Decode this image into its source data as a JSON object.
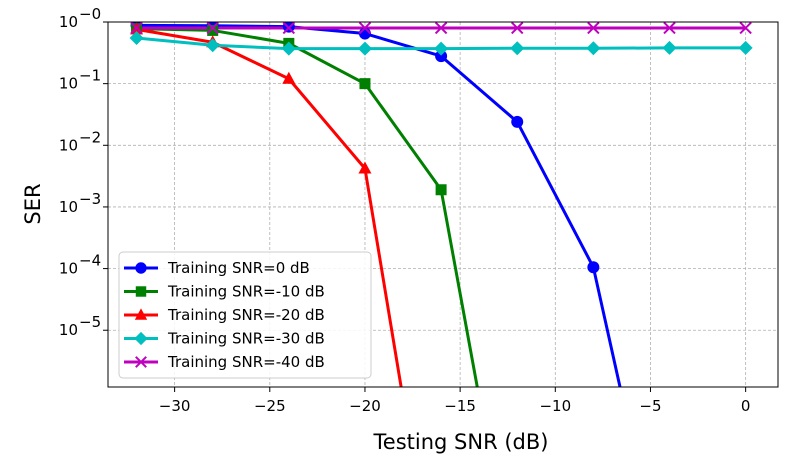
{
  "chart_data": {
    "type": "line",
    "xlabel": "Testing SNR (dB)",
    "ylabel": "SER",
    "y_scale": "log",
    "xlim": [
      -33.5,
      1.7
    ],
    "ylim": [
      1.2e-06,
      1.0
    ],
    "x_ticks": [
      -30,
      -25,
      -20,
      -15,
      -10,
      -5,
      0
    ],
    "x_tick_labels": [
      "−30",
      "−25",
      "−20",
      "−15",
      "−10",
      "−5",
      "0"
    ],
    "y_ticks": [
      1.0,
      0.1,
      0.01,
      0.001,
      0.0001,
      1e-05
    ],
    "y_tick_labels": [
      {
        "base": "10",
        "exp": "−0"
      },
      {
        "base": "10",
        "exp": "−1"
      },
      {
        "base": "10",
        "exp": "−2"
      },
      {
        "base": "10",
        "exp": "−3"
      },
      {
        "base": "10",
        "exp": "−4"
      },
      {
        "base": "10",
        "exp": "−5"
      }
    ],
    "grid": true,
    "legend_position": "lower-left",
    "series": [
      {
        "name": "Training SNR=0 dB",
        "color": "#0000ff",
        "marker": "circle",
        "x": [
          -32,
          -28,
          -24,
          -20,
          -16,
          -12,
          -8,
          -6.6
        ],
        "y": [
          0.88,
          0.87,
          0.84,
          0.65,
          0.28,
          0.024,
          0.000105,
          1.2e-06
        ]
      },
      {
        "name": "Training SNR=-10 dB",
        "color": "#008000",
        "marker": "square",
        "x": [
          -32,
          -28,
          -24,
          -20,
          -16,
          -14.1
        ],
        "y": [
          0.78,
          0.73,
          0.45,
          0.1,
          0.0019,
          1.2e-06
        ]
      },
      {
        "name": "Training SNR=-20 dB",
        "color": "#ff0000",
        "marker": "triangle",
        "x": [
          -32,
          -28,
          -24,
          -20,
          -18.1
        ],
        "y": [
          0.76,
          0.47,
          0.12,
          0.0042,
          1.2e-06
        ]
      },
      {
        "name": "Training SNR=-30 dB",
        "color": "#00bfbf",
        "marker": "diamond",
        "x": [
          -32,
          -28,
          -24,
          -20,
          -16,
          -12,
          -8,
          -4,
          0
        ],
        "y": [
          0.55,
          0.42,
          0.37,
          0.37,
          0.37,
          0.375,
          0.375,
          0.38,
          0.38
        ]
      },
      {
        "name": "Training SNR=-40 dB",
        "color": "#bf00bf",
        "marker": "x",
        "x": [
          -32,
          -28,
          -24,
          -20,
          -16,
          -12,
          -8,
          -4,
          0
        ],
        "y": [
          0.8,
          0.8,
          0.8,
          0.8,
          0.8,
          0.8,
          0.8,
          0.8,
          0.8
        ]
      }
    ]
  }
}
